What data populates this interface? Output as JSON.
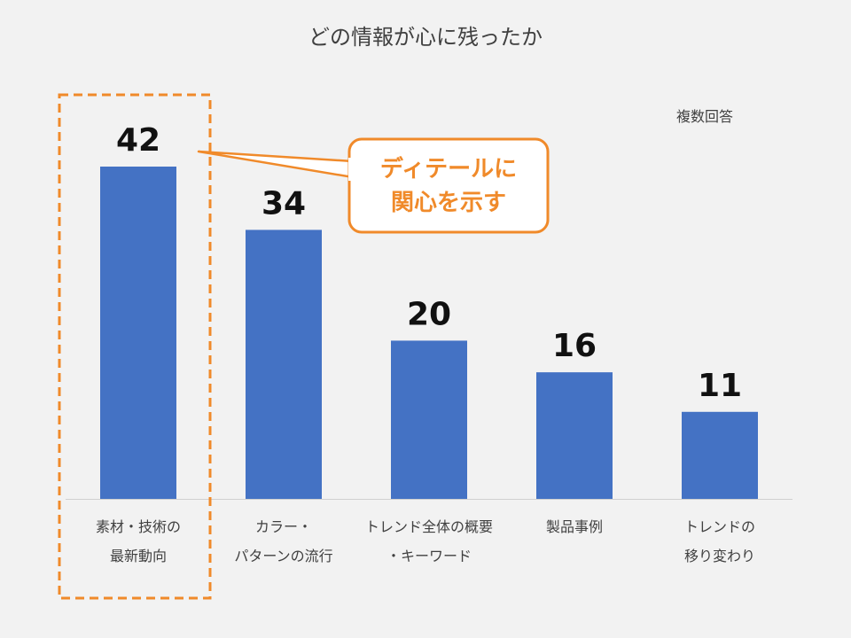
{
  "chart_data": {
    "type": "bar",
    "title": "どの情報が心に残ったか",
    "note": "複数回答",
    "categories": [
      [
        "素材・技術の",
        "最新動向"
      ],
      [
        "カラー・",
        "パターンの流行"
      ],
      [
        "トレンド全体の概要",
        "・キーワード"
      ],
      [
        "製品事例"
      ],
      [
        "トレンドの",
        "移り変わり"
      ]
    ],
    "values": [
      42,
      34,
      20,
      16,
      11
    ],
    "ylim": [
      0,
      42
    ],
    "bar_color": "#4472c4",
    "highlight_color": "#f08a2a",
    "highlight_index": 0,
    "callout": [
      "ディテールに",
      "関心を示す"
    ]
  }
}
